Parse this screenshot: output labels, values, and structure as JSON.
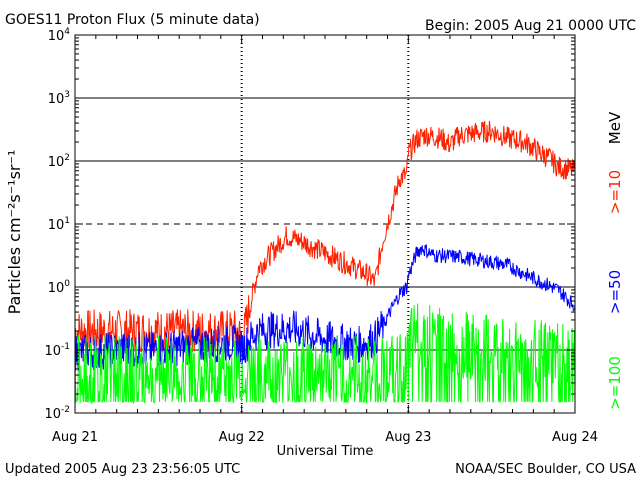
{
  "header": {
    "title": "GOES11 Proton Flux (5 minute data)",
    "begin": "Begin: 2005 Aug 21 0000 UTC"
  },
  "footer": {
    "updated": "Updated 2005 Aug 23 23:56:05 UTC",
    "credit": "NOAA/SEC Boulder, CO USA"
  },
  "chart_data": {
    "type": "line",
    "title": "GOES11 Proton Flux (5 minute data)",
    "xlabel": "Universal Time",
    "ylabel": "Particles cm⁻²s⁻¹sr⁻¹",
    "yscale": "log",
    "ylim": [
      0.01,
      10000
    ],
    "xlim_days": [
      0,
      3
    ],
    "x_ticks": [
      "Aug 21",
      "Aug 22",
      "Aug 23",
      "Aug 24"
    ],
    "y_ticks": [
      {
        "base": "10",
        "exp": "-2"
      },
      {
        "base": "10",
        "exp": "-1"
      },
      {
        "base": "10",
        "exp": "0"
      },
      {
        "base": "10",
        "exp": "1"
      },
      {
        "base": "10",
        "exp": "2"
      },
      {
        "base": "10",
        "exp": "3"
      },
      {
        "base": "10",
        "exp": "4"
      }
    ],
    "grid": {
      "solid": [
        0.1,
        1,
        100,
        1000
      ],
      "dashed": [
        10
      ]
    },
    "series": [
      {
        "name": ">=10 MeV",
        "color": "#ff2000",
        "points": [
          [
            0.0,
            0.2
          ],
          [
            0.25,
            0.2
          ],
          [
            0.5,
            0.2
          ],
          [
            0.75,
            0.2
          ],
          [
            0.98,
            0.2
          ],
          [
            1.0,
            0.12
          ],
          [
            1.05,
            0.5
          ],
          [
            1.1,
            2
          ],
          [
            1.2,
            4
          ],
          [
            1.27,
            6.5
          ],
          [
            1.35,
            5.5
          ],
          [
            1.45,
            4
          ],
          [
            1.55,
            3
          ],
          [
            1.65,
            2.2
          ],
          [
            1.75,
            1.6
          ],
          [
            1.8,
            1.2
          ],
          [
            1.85,
            6
          ],
          [
            1.9,
            18
          ],
          [
            1.95,
            55
          ],
          [
            1.99,
            60
          ],
          [
            2.0,
            130
          ],
          [
            2.05,
            220
          ],
          [
            2.1,
            260
          ],
          [
            2.2,
            230
          ],
          [
            2.25,
            180
          ],
          [
            2.3,
            250
          ],
          [
            2.4,
            280
          ],
          [
            2.5,
            300
          ],
          [
            2.6,
            230
          ],
          [
            2.7,
            200
          ],
          [
            2.8,
            130
          ],
          [
            2.85,
            110
          ],
          [
            2.9,
            80
          ],
          [
            2.95,
            75
          ],
          [
            3.0,
            70
          ]
        ]
      },
      {
        "name": ">=50 MeV",
        "color": "#0000ff",
        "points": [
          [
            0.0,
            0.09
          ],
          [
            0.25,
            0.1
          ],
          [
            0.5,
            0.1
          ],
          [
            0.75,
            0.12
          ],
          [
            0.98,
            0.13
          ],
          [
            1.0,
            0.1
          ],
          [
            1.05,
            0.15
          ],
          [
            1.1,
            0.2
          ],
          [
            1.3,
            0.22
          ],
          [
            1.5,
            0.15
          ],
          [
            1.7,
            0.12
          ],
          [
            1.8,
            0.15
          ],
          [
            1.85,
            0.25
          ],
          [
            1.9,
            0.45
          ],
          [
            1.95,
            0.8
          ],
          [
            1.99,
            1.0
          ],
          [
            2.0,
            1.5
          ],
          [
            2.05,
            3.5
          ],
          [
            2.08,
            4.2
          ],
          [
            2.15,
            3.2
          ],
          [
            2.3,
            3.0
          ],
          [
            2.5,
            2.5
          ],
          [
            2.6,
            2.2
          ],
          [
            2.7,
            1.6
          ],
          [
            2.8,
            1.2
          ],
          [
            2.9,
            0.9
          ],
          [
            3.0,
            0.5
          ]
        ]
      },
      {
        "name": ">=100 MeV",
        "color": "#00ff00",
        "points": [
          [
            0.0,
            0.05
          ],
          [
            0.25,
            0.05
          ],
          [
            0.5,
            0.05
          ],
          [
            0.75,
            0.05
          ],
          [
            0.98,
            0.05
          ],
          [
            1.0,
            0.05
          ],
          [
            1.25,
            0.05
          ],
          [
            1.5,
            0.05
          ],
          [
            1.75,
            0.05
          ],
          [
            1.99,
            0.05
          ],
          [
            2.0,
            0.1
          ],
          [
            2.05,
            0.2
          ],
          [
            2.1,
            0.18
          ],
          [
            2.3,
            0.12
          ],
          [
            2.5,
            0.1
          ],
          [
            2.7,
            0.09
          ],
          [
            2.9,
            0.08
          ],
          [
            3.0,
            0.07
          ]
        ]
      }
    ],
    "right_labels": [
      {
        "text": "MeV",
        "color": "#000000"
      },
      {
        "text": ">=10",
        "color": "#ff2000"
      },
      {
        "text": ">=50",
        "color": "#0000ff"
      },
      {
        "text": ">=100",
        "color": "#00ff00"
      }
    ]
  }
}
